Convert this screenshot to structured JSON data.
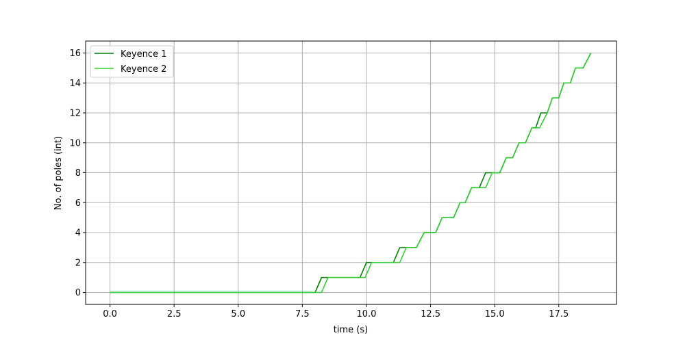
{
  "chart_data": {
    "type": "line",
    "title": "",
    "xlabel": "time (s)",
    "ylabel": "No. of poles (int)",
    "xlim": [
      -0.95,
      19.75
    ],
    "ylim": [
      -0.8,
      16.8
    ],
    "xticks": [
      0.0,
      2.5,
      5.0,
      7.5,
      10.0,
      12.5,
      15.0,
      17.5
    ],
    "xtick_labels": [
      "0.0",
      "2.5",
      "5.0",
      "7.5",
      "10.0",
      "12.5",
      "15.0",
      "17.5"
    ],
    "yticks": [
      0,
      2,
      4,
      6,
      8,
      10,
      12,
      14,
      16
    ],
    "ytick_labels": [
      "0",
      "2",
      "4",
      "6",
      "8",
      "10",
      "12",
      "14",
      "16"
    ],
    "grid": true,
    "legend_position": "top-left",
    "series": [
      {
        "name": "Keyence 1",
        "color": "#008000",
        "points": [
          [
            0.0,
            0
          ],
          [
            8.0,
            0
          ],
          [
            8.25,
            1
          ],
          [
            9.75,
            1
          ],
          [
            10.0,
            2
          ],
          [
            11.05,
            2
          ],
          [
            11.3,
            3
          ],
          [
            11.65,
            3
          ],
          [
            11.95,
            3
          ],
          [
            12.25,
            4
          ],
          [
            12.7,
            4
          ],
          [
            12.95,
            5
          ],
          [
            13.4,
            5
          ],
          [
            13.65,
            6
          ],
          [
            13.85,
            6
          ],
          [
            14.1,
            7
          ],
          [
            14.4,
            7
          ],
          [
            14.65,
            8
          ],
          [
            15.2,
            8
          ],
          [
            15.45,
            9
          ],
          [
            15.7,
            9
          ],
          [
            15.95,
            10
          ],
          [
            16.2,
            10
          ],
          [
            16.45,
            11
          ],
          [
            16.6,
            11
          ],
          [
            16.8,
            12
          ],
          [
            17.05,
            12
          ],
          [
            17.25,
            13
          ],
          [
            17.5,
            13
          ],
          [
            17.7,
            14
          ],
          [
            17.95,
            14
          ],
          [
            18.15,
            15
          ],
          [
            18.45,
            15
          ],
          [
            18.75,
            16
          ]
        ]
      },
      {
        "name": "Keyence 2",
        "color": "#32cd32",
        "points": [
          [
            0.0,
            0
          ],
          [
            8.25,
            0
          ],
          [
            8.5,
            1
          ],
          [
            9.95,
            1
          ],
          [
            10.2,
            2
          ],
          [
            11.3,
            2
          ],
          [
            11.55,
            3
          ],
          [
            11.95,
            3
          ],
          [
            12.25,
            4
          ],
          [
            12.7,
            4
          ],
          [
            12.95,
            5
          ],
          [
            13.4,
            5
          ],
          [
            13.65,
            6
          ],
          [
            13.85,
            6
          ],
          [
            14.1,
            7
          ],
          [
            14.65,
            7
          ],
          [
            14.9,
            8
          ],
          [
            15.2,
            8
          ],
          [
            15.45,
            9
          ],
          [
            15.7,
            9
          ],
          [
            15.95,
            10
          ],
          [
            16.2,
            10
          ],
          [
            16.45,
            11
          ],
          [
            16.75,
            11
          ],
          [
            17.05,
            12
          ],
          [
            17.25,
            13
          ],
          [
            17.5,
            13
          ],
          [
            17.7,
            14
          ],
          [
            17.95,
            14
          ],
          [
            18.15,
            15
          ],
          [
            18.45,
            15
          ],
          [
            18.75,
            16
          ]
        ]
      }
    ]
  }
}
